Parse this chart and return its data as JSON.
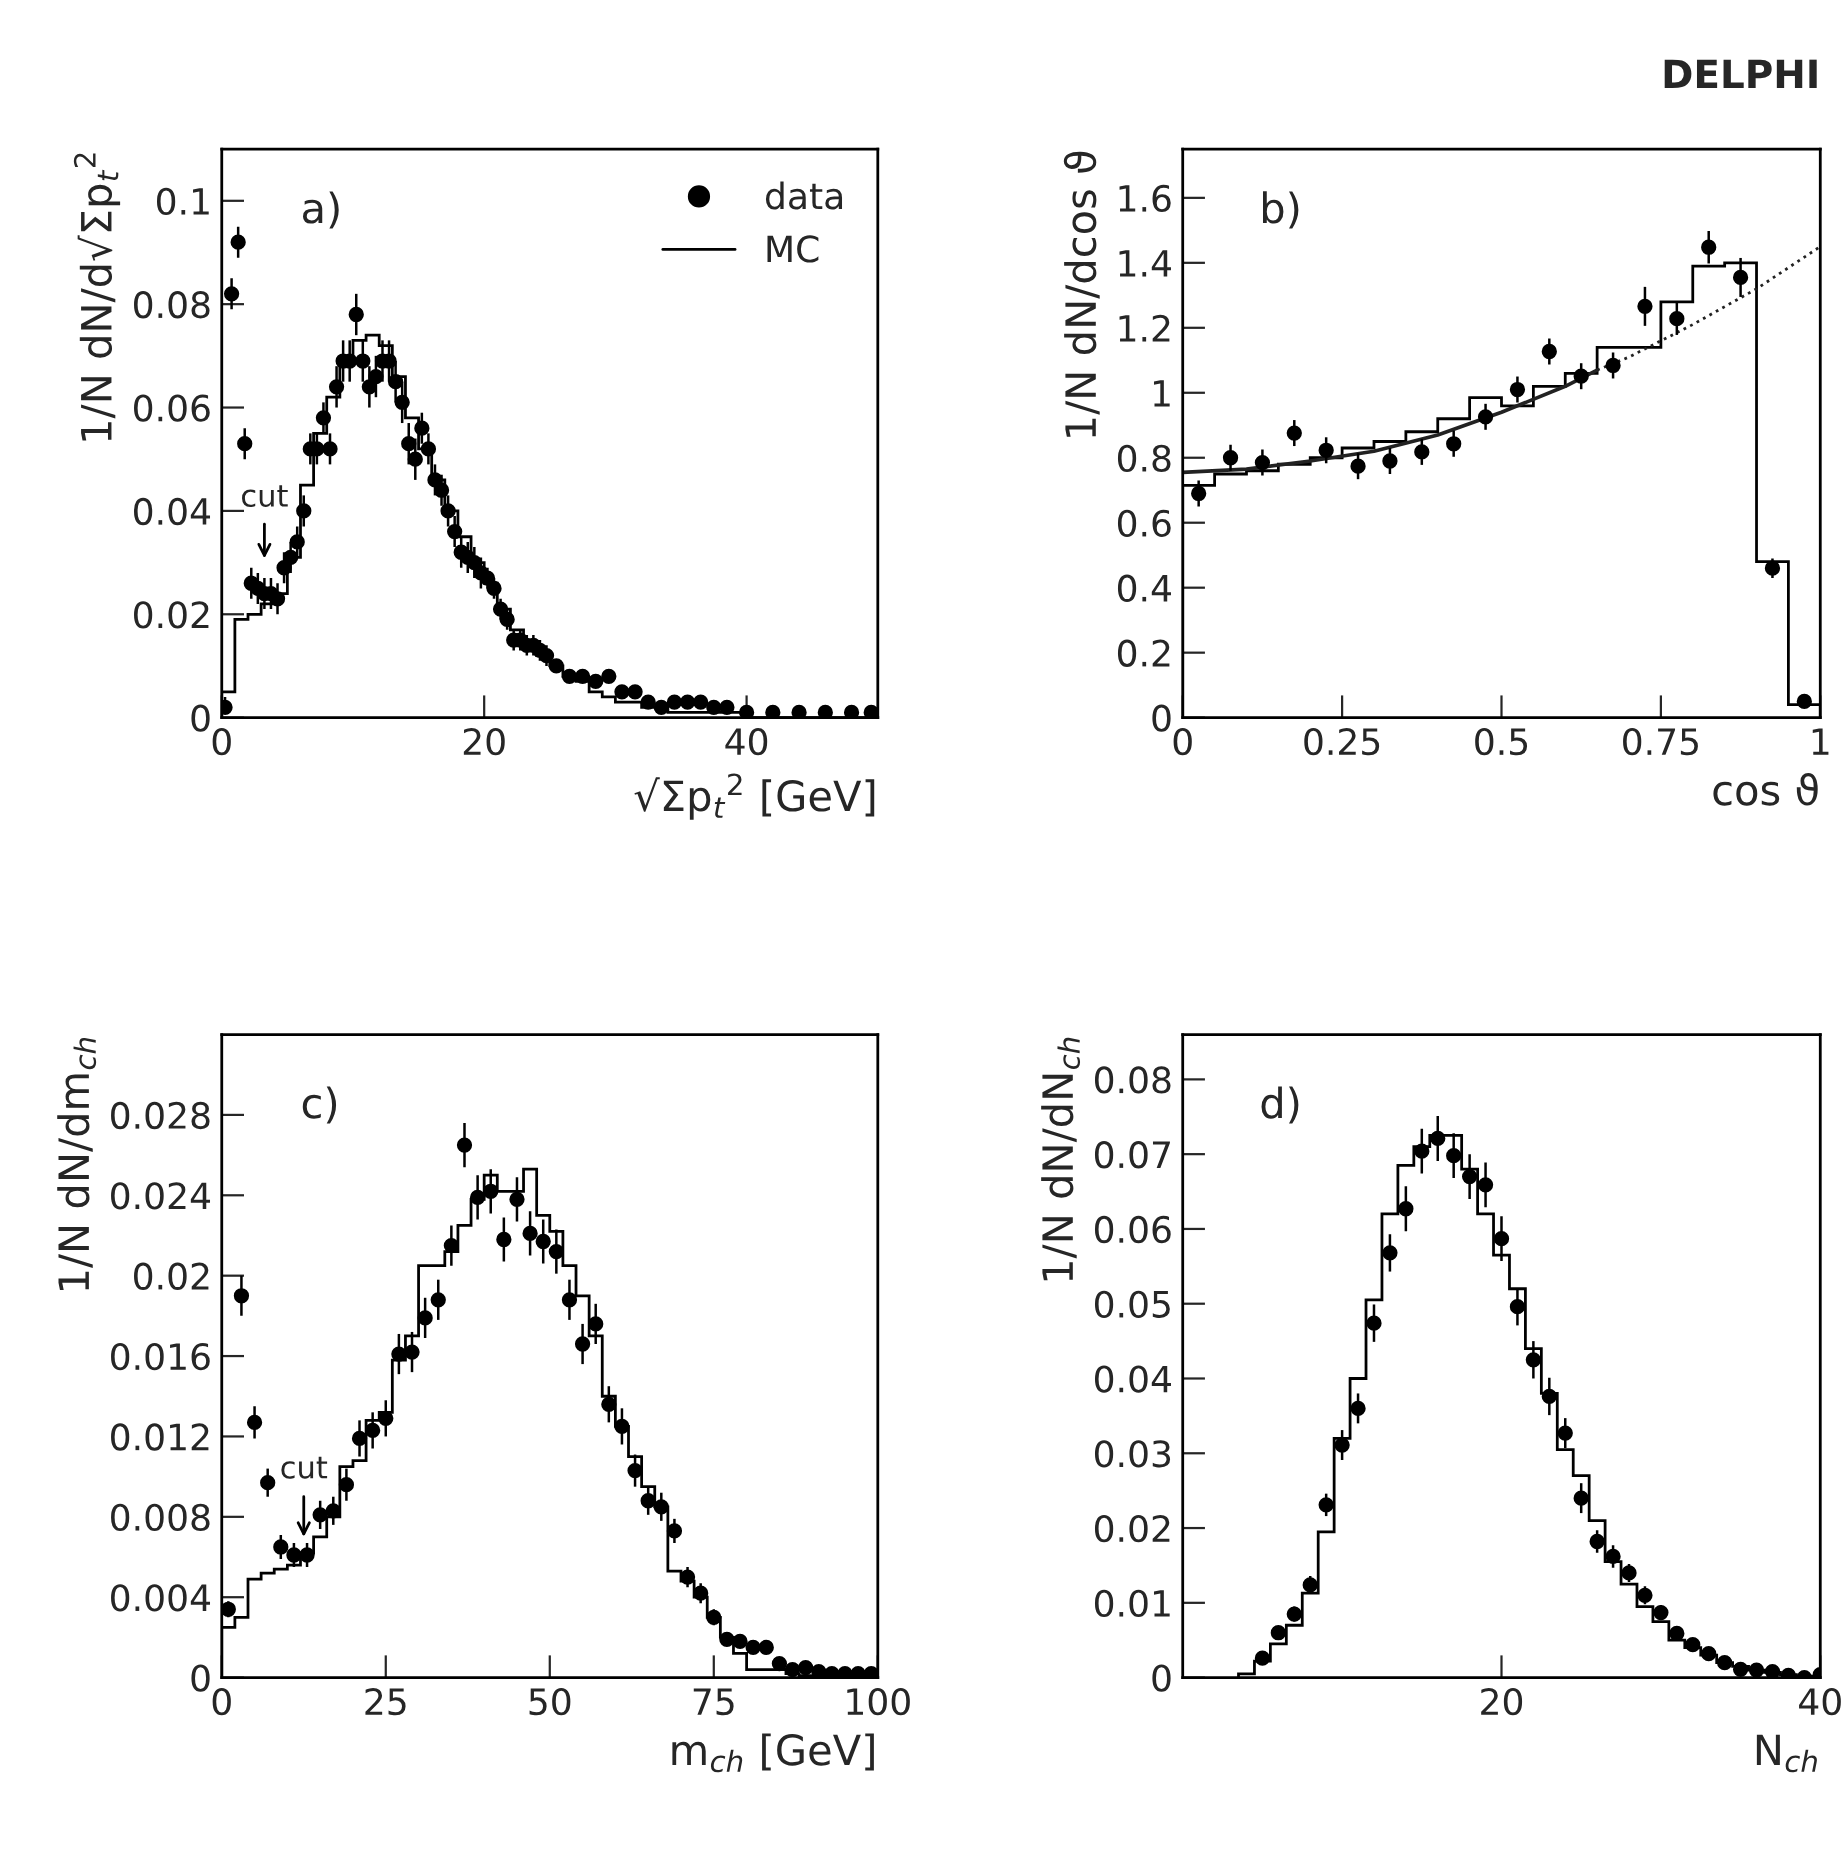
{
  "chart_data": [
    {
      "type": "scatter",
      "xlabel": "√Σp$_{t}$$^{2}$ [GeV]",
      "ylabel": "1/N dN/d√Σp$_{t}$$^{2}$",
      "xlim": [
        0,
        50
      ],
      "ylim": [
        0,
        0.11
      ],
      "xticks": [
        0,
        20,
        40
      ],
      "yticks": [
        0,
        0.02,
        0.04,
        0.06,
        0.08,
        0.1
      ],
      "legend": "top right",
      "annotations": [
        "a)",
        "cut"
      ],
      "series": [
        {
          "name": "data",
          "color": "#000000",
          "marker": "circle",
          "x": [
            0.25,
            0.75,
            1.25,
            1.75,
            2.25,
            2.75,
            3.25,
            3.75,
            4.25,
            4.75,
            5.25,
            5.75,
            6.25,
            6.75,
            7.25,
            7.75,
            8.25,
            8.75,
            9.25,
            9.75,
            10.25,
            10.75,
            11.25,
            11.75,
            12.25,
            12.75,
            13.25,
            13.75,
            14.25,
            14.75,
            15.25,
            15.75,
            16.25,
            16.75,
            17.25,
            17.75,
            18.25,
            18.75,
            19.25,
            19.75,
            20.25,
            20.75,
            21.25,
            21.75,
            22.25,
            22.75,
            23.25,
            23.75,
            24.25,
            24.75,
            25.5,
            26.5,
            27.5,
            28.5,
            29.5,
            30.5,
            31.5,
            32.5,
            33.5,
            34.5,
            35.5,
            36.5,
            37.5,
            38.5,
            40,
            42,
            44,
            46,
            48,
            49.5
          ],
          "values": [
            0.002,
            0.082,
            0.092,
            0.053,
            0.026,
            0.025,
            0.024,
            0.024,
            0.023,
            0.029,
            0.031,
            0.034,
            0.04,
            0.052,
            0.052,
            0.058,
            0.052,
            0.064,
            0.069,
            0.069,
            0.078,
            0.069,
            0.064,
            0.066,
            0.069,
            0.069,
            0.065,
            0.061,
            0.053,
            0.05,
            0.056,
            0.052,
            0.046,
            0.044,
            0.04,
            0.036,
            0.032,
            0.031,
            0.03,
            0.028,
            0.027,
            0.025,
            0.021,
            0.019,
            0.015,
            0.015,
            0.014,
            0.014,
            0.013,
            0.012,
            0.01,
            0.008,
            0.008,
            0.007,
            0.008,
            0.005,
            0.005,
            0.003,
            0.002,
            0.003,
            0.003,
            0.003,
            0.002,
            0.002,
            0.001,
            0.001,
            0.001,
            0.001,
            0.001,
            0.001
          ],
          "errors": [
            [
              0.002,
              0.004
            ],
            0.003,
            0.003,
            0.003,
            0.003,
            0.003,
            0.003,
            0.003,
            0.003,
            0.003,
            0.003,
            0.003,
            0.003,
            0.003,
            0.003,
            0.003,
            0.003,
            0.004,
            0.004,
            0.004,
            0.004,
            0.004,
            0.004,
            0.004,
            0.004,
            0.004,
            0.004,
            0.004,
            0.004,
            0.004,
            0.003,
            0.003,
            0.003,
            0.003,
            0.003,
            0.003,
            0.003,
            0.003,
            0.003,
            0.003,
            0.002,
            0.002,
            0.002,
            0.002,
            0.002,
            0.002,
            0.002,
            0.002,
            0.002,
            0.002,
            0.001,
            0.001,
            0.001,
            0.001,
            0.001,
            0.001,
            0.001,
            0.001,
            0.001,
            0.001,
            0.001,
            0.001,
            0.001,
            0.001,
            0.001,
            0.001,
            0.001,
            0.001,
            0.001,
            0.001
          ]
        },
        {
          "name": "MC",
          "type": "histogram",
          "color": "#000000",
          "bins": [
            0,
            1,
            2,
            3,
            4,
            5,
            6,
            7,
            8,
            9,
            10,
            11,
            12,
            13,
            14,
            15,
            16,
            17,
            18,
            19,
            20,
            21,
            22,
            23,
            24,
            25,
            26,
            27,
            28,
            29,
            30,
            31,
            32,
            33,
            34,
            35,
            36,
            37,
            38,
            39,
            40,
            41,
            42,
            43,
            44,
            45,
            46,
            47,
            48,
            49,
            50
          ],
          "values": [
            0.005,
            0.019,
            0.02,
            0.022,
            0.024,
            0.031,
            0.045,
            0.055,
            0.062,
            0.069,
            0.073,
            0.074,
            0.072,
            0.066,
            0.058,
            0.052,
            0.046,
            0.04,
            0.035,
            0.03,
            0.026,
            0.021,
            0.017,
            0.014,
            0.012,
            0.01,
            0.008,
            0.007,
            0.005,
            0.004,
            0.003,
            0.003,
            0.002,
            0.002,
            0.001,
            0.001,
            0.001,
            0.001,
            0.001,
            0.001,
            0,
            0,
            0,
            0,
            0,
            0,
            0,
            0,
            0,
            0
          ]
        }
      ]
    },
    {
      "type": "scatter",
      "title": "DELPHI",
      "xlabel": "cos ϑ",
      "ylabel": "1/N dN/dcos ϑ",
      "xlim": [
        0,
        1
      ],
      "ylim": [
        0,
        1.75
      ],
      "xticks": [
        0,
        0.25,
        0.5,
        0.75,
        1
      ],
      "yticks": [
        0,
        0.2,
        0.4,
        0.6,
        0.8,
        1,
        1.2,
        1.4,
        1.6
      ],
      "annotations": [
        "b)"
      ],
      "series": [
        {
          "color": "#000000",
          "marker": "circle",
          "x": [
            0.025,
            0.075,
            0.125,
            0.175,
            0.225,
            0.275,
            0.325,
            0.375,
            0.425,
            0.475,
            0.525,
            0.575,
            0.625,
            0.675,
            0.725,
            0.775,
            0.825,
            0.875,
            0.925,
            0.975
          ],
          "values": [
            0.69,
            0.8,
            0.785,
            0.876,
            0.823,
            0.774,
            0.79,
            0.818,
            0.843,
            0.926,
            1.01,
            1.127,
            1.051,
            1.084,
            1.266,
            1.228,
            1.448,
            1.355,
            0.46,
            0.05
          ],
          "errors": [
            0.04,
            0.04,
            0.04,
            0.04,
            0.04,
            0.04,
            0.04,
            0.04,
            0.04,
            0.04,
            0.04,
            0.04,
            0.04,
            0.04,
            0.06,
            0.05,
            0.05,
            0.06,
            0.03,
            0.01
          ]
        },
        {
          "type": "histogram",
          "color": "#000000",
          "bins": [
            0,
            0.05,
            0.1,
            0.15,
            0.2,
            0.25,
            0.3,
            0.35,
            0.4,
            0.45,
            0.5,
            0.55,
            0.6,
            0.65,
            0.7,
            0.75,
            0.8,
            0.85,
            0.9,
            0.95,
            1
          ],
          "values": [
            0.715,
            0.75,
            0.76,
            0.78,
            0.8,
            0.83,
            0.85,
            0.88,
            0.92,
            0.985,
            0.96,
            1.02,
            1.06,
            1.14,
            1.14,
            1.28,
            1.39,
            1.4,
            0.48,
            0.04
          ]
        },
        {
          "type": "line",
          "color": "#222222",
          "line_style": "solid",
          "x": [
            0,
            0.1,
            0.2,
            0.3,
            0.4,
            0.5,
            0.6,
            0.65
          ],
          "values": [
            0.755,
            0.765,
            0.79,
            0.82,
            0.87,
            0.94,
            1.02,
            1.07
          ]
        },
        {
          "type": "line",
          "color": "#222222",
          "line_style": "dotted",
          "x": [
            0.65,
            0.7,
            0.8,
            0.9,
            1.0
          ],
          "values": [
            1.07,
            1.11,
            1.21,
            1.32,
            1.45
          ]
        }
      ]
    },
    {
      "type": "scatter",
      "xlabel": "m$_{ch}$ [GeV]",
      "ylabel": "1/N dN/dm$_{ch}$",
      "xlim": [
        0,
        100
      ],
      "ylim": [
        0,
        0.032
      ],
      "xticks": [
        0,
        25,
        50,
        75,
        100
      ],
      "yticks": [
        0,
        0.004,
        0.008,
        0.012,
        0.016,
        0.02,
        0.024,
        0.028
      ],
      "annotations": [
        "c)",
        "cut"
      ],
      "series": [
        {
          "color": "#000000",
          "marker": "circle",
          "x": [
            1,
            3,
            5,
            7,
            9,
            11,
            13,
            15,
            17,
            19,
            21,
            23,
            25,
            27,
            29,
            31,
            33,
            35,
            37,
            39,
            41,
            43,
            45,
            47,
            49,
            51,
            53,
            55,
            57,
            59,
            61,
            63,
            65,
            67,
            69,
            71,
            73,
            75,
            77,
            79,
            81,
            83,
            85,
            87,
            89,
            91,
            93,
            95,
            97,
            99
          ],
          "values": [
            0.0034,
            0.019,
            0.0127,
            0.0097,
            0.0065,
            0.0061,
            0.0061,
            0.0081,
            0.0083,
            0.0096,
            0.0119,
            0.0123,
            0.0129,
            0.0161,
            0.0162,
            0.0179,
            0.0188,
            0.0215,
            0.0265,
            0.0239,
            0.0242,
            0.0218,
            0.0238,
            0.0221,
            0.0217,
            0.0212,
            0.0188,
            0.0166,
            0.0176,
            0.0136,
            0.0125,
            0.0103,
            0.0088,
            0.0085,
            0.0073,
            0.005,
            0.0042,
            0.003,
            0.0019,
            0.0018,
            0.0015,
            0.0015,
            0.0007,
            0.0004,
            0.0005,
            0.0003,
            0.0002,
            0.0002,
            0.0002,
            0.0002
          ],
          "errors": [
            0.0004,
            0.001,
            0.0008,
            0.0007,
            0.0006,
            0.0006,
            0.0006,
            0.0007,
            0.0007,
            0.0008,
            0.0009,
            0.0009,
            0.0009,
            0.001,
            0.001,
            0.001,
            0.001,
            0.001,
            0.0011,
            0.0011,
            0.0011,
            0.0011,
            0.0011,
            0.0011,
            0.0011,
            0.0011,
            0.001,
            0.001,
            0.001,
            0.0009,
            0.0009,
            0.0008,
            0.0007,
            0.0007,
            0.0006,
            0.0005,
            0.0005,
            0.0004,
            0.0003,
            0.0003,
            0.0003,
            0.0003,
            0.0002,
            0.0002,
            0.0002,
            0.0002,
            0.0001,
            0.0001,
            0.0001,
            0.0001
          ]
        },
        {
          "type": "histogram",
          "color": "#000000",
          "bins": [
            0,
            2,
            4,
            6,
            8,
            10,
            12,
            14,
            16,
            18,
            20,
            22,
            24,
            26,
            28,
            30,
            32,
            34,
            36,
            38,
            40,
            42,
            44,
            46,
            48,
            50,
            52,
            54,
            56,
            58,
            60,
            62,
            64,
            66,
            68,
            70,
            72,
            74,
            76,
            78,
            80,
            82,
            84,
            86,
            88,
            90,
            92,
            94,
            96,
            98,
            100
          ],
          "values": [
            0.0025,
            0.003,
            0.0049,
            0.0052,
            0.0054,
            0.0056,
            0.0062,
            0.007,
            0.008,
            0.0105,
            0.0108,
            0.0128,
            0.0132,
            0.0158,
            0.017,
            0.0205,
            0.0205,
            0.0212,
            0.0225,
            0.0238,
            0.025,
            0.0242,
            0.0242,
            0.0253,
            0.023,
            0.0222,
            0.0205,
            0.019,
            0.017,
            0.014,
            0.0125,
            0.011,
            0.0095,
            0.0085,
            0.0053,
            0.0048,
            0.004,
            0.003,
            0.002,
            0.0012,
            0.0004,
            0.0004,
            0.0004,
            0.0002,
            0.0001,
            0.0001,
            0,
            0,
            0,
            0
          ]
        }
      ]
    },
    {
      "type": "scatter",
      "xlabel": "N$_{ch}$",
      "ylabel": "1/N dN/dN$_{ch}$",
      "xlim": [
        0,
        40
      ],
      "ylim": [
        0,
        0.086
      ],
      "xticks": [
        20,
        40
      ],
      "yticks": [
        0,
        0.01,
        0.02,
        0.03,
        0.04,
        0.05,
        0.06,
        0.07,
        0.08
      ],
      "annotations": [
        "d)"
      ],
      "series": [
        {
          "color": "#000000",
          "marker": "circle",
          "x": [
            5,
            6,
            7,
            8,
            9,
            10,
            11,
            12,
            13,
            14,
            15,
            16,
            17,
            18,
            19,
            20,
            21,
            22,
            23,
            24,
            25,
            26,
            27,
            28,
            29,
            30,
            31,
            32,
            33,
            34,
            35,
            36,
            37,
            38,
            39,
            40
          ],
          "values": [
            0.0026,
            0.006,
            0.0085,
            0.0124,
            0.0231,
            0.0311,
            0.036,
            0.0474,
            0.0568,
            0.0627,
            0.0704,
            0.0721,
            0.0698,
            0.067,
            0.0659,
            0.0587,
            0.0496,
            0.0425,
            0.0376,
            0.0327,
            0.024,
            0.0182,
            0.0162,
            0.014,
            0.011,
            0.0087,
            0.0059,
            0.0044,
            0.0032,
            0.002,
            0.0011,
            0.001,
            0.0008,
            0.0003,
            0.0,
            0.0004
          ],
          "errors": [
            0.0005,
            0.0008,
            0.001,
            0.0012,
            0.0015,
            0.002,
            0.002,
            0.0025,
            0.0025,
            0.003,
            0.003,
            0.003,
            0.003,
            0.003,
            0.003,
            0.003,
            0.0025,
            0.0025,
            0.0025,
            0.002,
            0.002,
            0.0015,
            0.0015,
            0.0012,
            0.0012,
            0.001,
            0.0008,
            0.0006,
            0.0005,
            0.0004,
            0.0003,
            0.0003,
            0.0002,
            0.0002,
            0.0002,
            0.0002
          ]
        },
        {
          "type": "histogram",
          "color": "#000000",
          "bins": [
            3.5,
            4.5,
            5.5,
            6.5,
            7.5,
            8.5,
            9.5,
            10.5,
            11.5,
            12.5,
            13.5,
            14.5,
            15.5,
            16.5,
            17.5,
            18.5,
            19.5,
            20.5,
            21.5,
            22.5,
            23.5,
            24.5,
            25.5,
            26.5,
            27.5,
            28.5,
            29.5,
            30.5,
            31.5,
            32.5,
            33.5,
            34.5,
            35.5,
            36.5,
            37.5,
            38.5,
            39.5
          ],
          "values": [
            0.0005,
            0.0022,
            0.0045,
            0.007,
            0.0113,
            0.0195,
            0.032,
            0.04,
            0.0505,
            0.062,
            0.0685,
            0.071,
            0.0725,
            0.0725,
            0.068,
            0.062,
            0.0565,
            0.052,
            0.044,
            0.038,
            0.0305,
            0.027,
            0.021,
            0.0155,
            0.0125,
            0.0095,
            0.0075,
            0.005,
            0.004,
            0.003,
            0.002,
            0.0015,
            0.001,
            0.0007,
            0.0004,
            0.0002
          ]
        }
      ]
    }
  ]
}
